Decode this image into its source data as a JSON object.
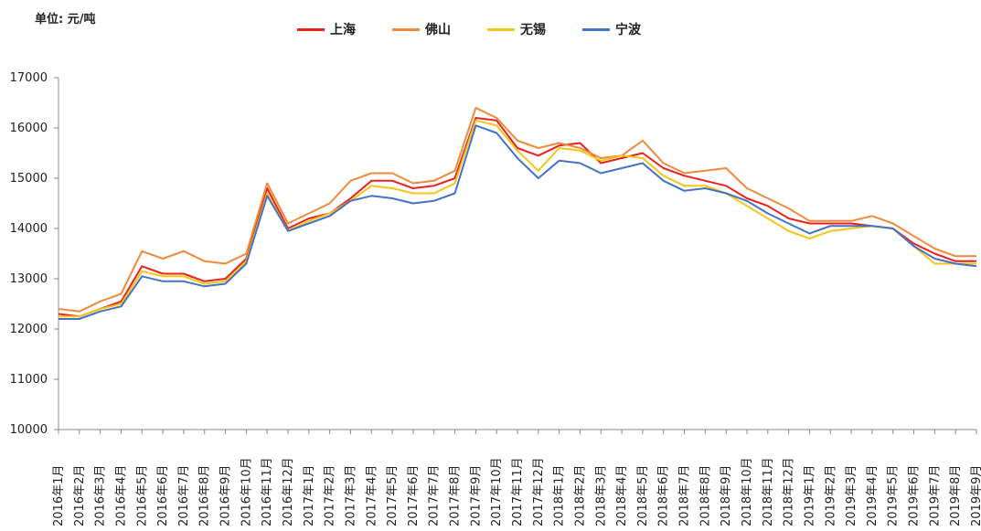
{
  "unit_label": "单位: 元/吨",
  "chart_data": {
    "type": "line",
    "title": "",
    "xlabel": "",
    "ylabel": "",
    "ylim": [
      10000,
      17000
    ],
    "y_ticks": [
      "10000",
      "11000",
      "12000",
      "13000",
      "14000",
      "15000",
      "16000",
      "17000"
    ],
    "categories": [
      "2016年1月",
      "2016年2月",
      "2016年3月",
      "2016年4月",
      "2016年5月",
      "2016年6月",
      "2016年7月",
      "2016年8月",
      "2016年9月",
      "2016年10月",
      "2016年11月",
      "2016年12月",
      "2017年1月",
      "2017年2月",
      "2017年3月",
      "2017年4月",
      "2017年5月",
      "2017年6月",
      "2017年7月",
      "2017年8月",
      "2017年9月",
      "2017年10月",
      "2017年11月",
      "2017年12月",
      "2018年1月",
      "2018年2月",
      "2018年3月",
      "2018年4月",
      "2018年5月",
      "2018年6月",
      "2018年7月",
      "2018年8月",
      "2018年9月",
      "2018年10月",
      "2018年11月",
      "2018年12月",
      "2019年1月",
      "2019年2月",
      "2019年3月",
      "2019年4月",
      "2019年5月",
      "2019年6月",
      "2019年7月",
      "2019年8月",
      "2019年9月"
    ],
    "legend_position": "top",
    "grid": false,
    "series": [
      {
        "name": "上海",
        "color": "#e8221c",
        "values": [
          12300,
          12250,
          12400,
          12550,
          13250,
          13100,
          13100,
          12950,
          13000,
          13400,
          14800,
          14000,
          14200,
          14300,
          14600,
          14950,
          14950,
          14800,
          14850,
          15000,
          16200,
          16150,
          15600,
          15450,
          15650,
          15700,
          15300,
          15400,
          15500,
          15200,
          15050,
          14950,
          14850,
          14600,
          14450,
          14200,
          14100,
          14100,
          14100,
          14050,
          14000,
          13700,
          13500,
          13350,
          13350
        ]
      },
      {
        "name": "佛山",
        "color": "#ef8a3c",
        "values": [
          12400,
          12350,
          12550,
          12700,
          13550,
          13400,
          13550,
          13350,
          13300,
          13500,
          14900,
          14100,
          14300,
          14500,
          14950,
          15100,
          15100,
          14900,
          14950,
          15150,
          16400,
          16200,
          15750,
          15600,
          15700,
          15600,
          15400,
          15450,
          15750,
          15300,
          15100,
          15150,
          15200,
          14800,
          14600,
          14400,
          14150,
          14150,
          14150,
          14250,
          14100,
          13850,
          13600,
          13450,
          13450
        ]
      },
      {
        "name": "无锡",
        "color": "#f5c518",
        "values": [
          12250,
          12250,
          12400,
          12500,
          13150,
          13050,
          13050,
          12900,
          12950,
          13350,
          14700,
          13950,
          14150,
          14300,
          14550,
          14850,
          14800,
          14700,
          14700,
          14900,
          16150,
          16050,
          15550,
          15150,
          15600,
          15550,
          15350,
          15450,
          15400,
          15050,
          14850,
          14850,
          14700,
          14450,
          14200,
          13950,
          13800,
          13950,
          14000,
          14050,
          14000,
          13650,
          13300,
          13300,
          13300
        ]
      },
      {
        "name": "宁波",
        "color": "#4472c4",
        "values": [
          12200,
          12200,
          12350,
          12450,
          13050,
          12950,
          12950,
          12850,
          12900,
          13300,
          14650,
          13950,
          14100,
          14250,
          14550,
          14650,
          14600,
          14500,
          14550,
          14700,
          16050,
          15900,
          15400,
          15000,
          15350,
          15300,
          15100,
          15200,
          15300,
          14950,
          14750,
          14800,
          14700,
          14550,
          14300,
          14100,
          13900,
          14050,
          14050,
          14050,
          14000,
          13650,
          13400,
          13300,
          13250
        ]
      }
    ]
  }
}
